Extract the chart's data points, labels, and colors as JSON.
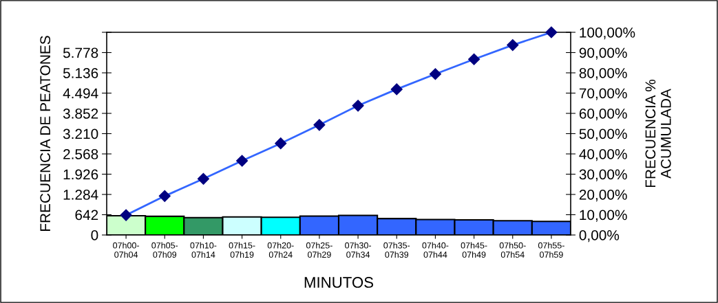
{
  "chart_data": {
    "type": "bar",
    "xlabel": "MINUTOS",
    "ylabel": "FRECUENCIA DE PEATONES",
    "y2label": "FRECUENCIA %\nACUMULADA",
    "categories": [
      "07h00-\n07h04",
      "07h05-\n07h09",
      "07h10-\n07h14",
      "07h15-\n07h19",
      "07h20-\n07h24",
      "07h25-\n07h29",
      "07h30-\n07h34",
      "07h35-\n07h39",
      "07h40-\n07h44",
      "07h45-\n07h49",
      "07h50-\n07h54",
      "07h55-\n07h59"
    ],
    "series": [
      {
        "colors": [
          "#ccffcc",
          "#00ff00",
          "#339966",
          "#ccffff",
          "#00ffff",
          "#3366ff",
          "#3366ff",
          "#3366ff",
          "#3366ff",
          "#3366ff",
          "#3366ff",
          "#3366ff"
        ],
        "values": [
          610,
          590,
          550,
          570,
          560,
          600,
          620,
          520,
          490,
          480,
          450,
          430
        ]
      },
      {
        "type": "line",
        "axis": "y2",
        "color": "#3366ff",
        "marker": "diamond",
        "values": [
          9.8,
          19.2,
          27.7,
          36.6,
          45.2,
          54.3,
          63.8,
          71.9,
          79.4,
          86.7,
          93.7,
          100
        ]
      }
    ],
    "ylim": [
      0,
      6420
    ],
    "yticks": [
      0,
      642,
      {
        "value": 1284,
        "label": "1.284"
      },
      {
        "value": 1926,
        "label": "1.926"
      },
      {
        "value": 2568,
        "label": "2.568"
      },
      {
        "value": 3210,
        "label": "3.210"
      },
      {
        "value": 3852,
        "label": "3.852"
      },
      {
        "value": 4494,
        "label": "4.494"
      },
      {
        "value": 5136,
        "label": "5.136"
      },
      {
        "value": 5778,
        "label": "5.778"
      },
      {
        "value": 6420,
        "label": null
      }
    ],
    "y2lim": [
      0,
      100
    ],
    "y2ticks": [
      {
        "value": 0,
        "label": "0,00%"
      },
      {
        "value": 10,
        "label": "10,00%"
      },
      {
        "value": 20,
        "label": "20,00%"
      },
      {
        "value": 30,
        "label": "30,00%"
      },
      {
        "value": 40,
        "label": "40,00%"
      },
      {
        "value": 50,
        "label": "50,00%"
      },
      {
        "value": 60,
        "label": "60,00%"
      },
      {
        "value": 70,
        "label": "70,00%"
      },
      {
        "value": 80,
        "label": "80,00%"
      },
      {
        "value": 90,
        "label": "90,00%"
      },
      {
        "value": 100,
        "label": "100,00%"
      }
    ],
    "grid": false,
    "legend": false
  }
}
